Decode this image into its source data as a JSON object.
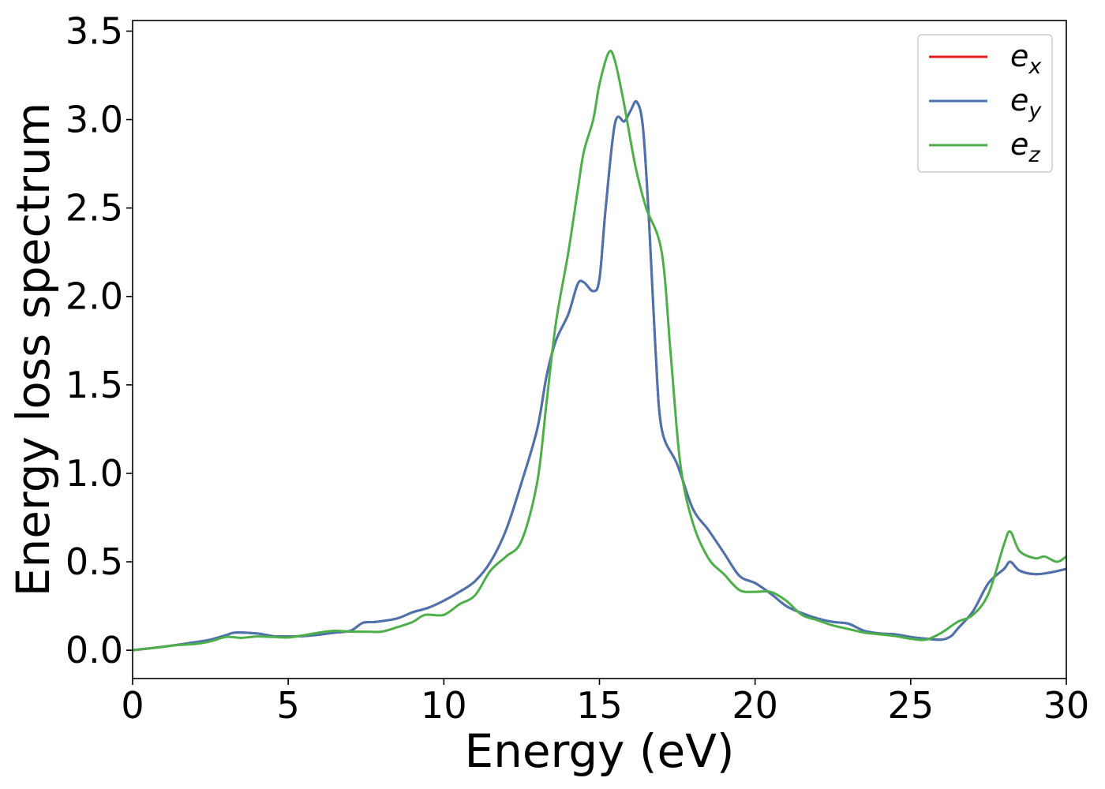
{
  "chart_data": {
    "type": "line",
    "title": "",
    "xlabel": "Energy (eV)",
    "ylabel": "Energy loss spectrum",
    "xlim": [
      0,
      30
    ],
    "ylim": [
      -0.16,
      3.56
    ],
    "x_ticks": [
      0,
      5,
      10,
      15,
      20,
      25,
      30
    ],
    "x_tick_labels": [
      "0",
      "5",
      "10",
      "15",
      "20",
      "25",
      "30"
    ],
    "y_ticks": [
      0.0,
      0.5,
      1.0,
      1.5,
      2.0,
      2.5,
      3.0,
      3.5
    ],
    "y_tick_labels": [
      "0.0",
      "0.5",
      "1.0",
      "1.5",
      "2.0",
      "2.5",
      "3.0",
      "3.5"
    ],
    "grid": false,
    "legend_position": "top-right",
    "series": [
      {
        "name": "e",
        "subscript": "x",
        "color": "#e41a1c",
        "points": [
          [
            0,
            0
          ],
          [
            1,
            0.02
          ],
          [
            2,
            0.045
          ],
          [
            2.5,
            0.06
          ],
          [
            3,
            0.085
          ],
          [
            3.3,
            0.1
          ],
          [
            4,
            0.095
          ],
          [
            4.5,
            0.08
          ],
          [
            5,
            0.078
          ],
          [
            5.5,
            0.08
          ],
          [
            6,
            0.088
          ],
          [
            6.5,
            0.1
          ],
          [
            7,
            0.11
          ],
          [
            7.4,
            0.155
          ],
          [
            7.8,
            0.16
          ],
          [
            8.5,
            0.18
          ],
          [
            9,
            0.215
          ],
          [
            9.5,
            0.24
          ],
          [
            10,
            0.28
          ],
          [
            10.5,
            0.33
          ],
          [
            11,
            0.39
          ],
          [
            11.5,
            0.5
          ],
          [
            12,
            0.68
          ],
          [
            12.5,
            0.95
          ],
          [
            13,
            1.25
          ],
          [
            13.3,
            1.55
          ],
          [
            13.6,
            1.75
          ],
          [
            14,
            1.9
          ],
          [
            14.3,
            2.07
          ],
          [
            14.5,
            2.08
          ],
          [
            14.8,
            2.03
          ],
          [
            15,
            2.1
          ],
          [
            15.2,
            2.5
          ],
          [
            15.5,
            2.98
          ],
          [
            15.8,
            2.99
          ],
          [
            16,
            3.05
          ],
          [
            16.2,
            3.1
          ],
          [
            16.4,
            2.95
          ],
          [
            16.6,
            2.4
          ],
          [
            16.8,
            1.7
          ],
          [
            17,
            1.25
          ],
          [
            17.5,
            1.05
          ],
          [
            18,
            0.8
          ],
          [
            18.5,
            0.68
          ],
          [
            19,
            0.55
          ],
          [
            19.5,
            0.42
          ],
          [
            20,
            0.38
          ],
          [
            20.5,
            0.32
          ],
          [
            21,
            0.25
          ],
          [
            21.5,
            0.21
          ],
          [
            22,
            0.18
          ],
          [
            22.5,
            0.16
          ],
          [
            23,
            0.15
          ],
          [
            23.5,
            0.11
          ],
          [
            24,
            0.095
          ],
          [
            24.5,
            0.09
          ],
          [
            25,
            0.075
          ],
          [
            25.5,
            0.065
          ],
          [
            26,
            0.06
          ],
          [
            26.3,
            0.08
          ],
          [
            26.5,
            0.12
          ],
          [
            27,
            0.22
          ],
          [
            27.5,
            0.38
          ],
          [
            28,
            0.46
          ],
          [
            28.2,
            0.5
          ],
          [
            28.5,
            0.45
          ],
          [
            29,
            0.43
          ],
          [
            29.5,
            0.44
          ],
          [
            30,
            0.46
          ]
        ]
      },
      {
        "name": "e",
        "subscript": "y",
        "color": "#4a74b0",
        "points": [
          [
            0,
            0
          ],
          [
            1,
            0.02
          ],
          [
            2,
            0.045
          ],
          [
            2.5,
            0.06
          ],
          [
            3,
            0.085
          ],
          [
            3.3,
            0.1
          ],
          [
            4,
            0.095
          ],
          [
            4.5,
            0.08
          ],
          [
            5,
            0.078
          ],
          [
            5.5,
            0.08
          ],
          [
            6,
            0.088
          ],
          [
            6.5,
            0.1
          ],
          [
            7,
            0.11
          ],
          [
            7.4,
            0.155
          ],
          [
            7.8,
            0.16
          ],
          [
            8.5,
            0.18
          ],
          [
            9,
            0.215
          ],
          [
            9.5,
            0.24
          ],
          [
            10,
            0.28
          ],
          [
            10.5,
            0.33
          ],
          [
            11,
            0.39
          ],
          [
            11.5,
            0.5
          ],
          [
            12,
            0.68
          ],
          [
            12.5,
            0.95
          ],
          [
            13,
            1.25
          ],
          [
            13.3,
            1.55
          ],
          [
            13.6,
            1.75
          ],
          [
            14,
            1.9
          ],
          [
            14.3,
            2.07
          ],
          [
            14.5,
            2.08
          ],
          [
            14.8,
            2.03
          ],
          [
            15,
            2.1
          ],
          [
            15.2,
            2.5
          ],
          [
            15.5,
            2.98
          ],
          [
            15.8,
            2.99
          ],
          [
            16,
            3.05
          ],
          [
            16.2,
            3.1
          ],
          [
            16.4,
            2.95
          ],
          [
            16.6,
            2.4
          ],
          [
            16.8,
            1.7
          ],
          [
            17,
            1.25
          ],
          [
            17.5,
            1.05
          ],
          [
            18,
            0.8
          ],
          [
            18.5,
            0.68
          ],
          [
            19,
            0.55
          ],
          [
            19.5,
            0.42
          ],
          [
            20,
            0.38
          ],
          [
            20.5,
            0.32
          ],
          [
            21,
            0.25
          ],
          [
            21.5,
            0.21
          ],
          [
            22,
            0.18
          ],
          [
            22.5,
            0.16
          ],
          [
            23,
            0.15
          ],
          [
            23.5,
            0.11
          ],
          [
            24,
            0.095
          ],
          [
            24.5,
            0.09
          ],
          [
            25,
            0.075
          ],
          [
            25.5,
            0.065
          ],
          [
            26,
            0.06
          ],
          [
            26.3,
            0.08
          ],
          [
            26.5,
            0.12
          ],
          [
            27,
            0.22
          ],
          [
            27.5,
            0.38
          ],
          [
            28,
            0.46
          ],
          [
            28.2,
            0.5
          ],
          [
            28.5,
            0.45
          ],
          [
            29,
            0.43
          ],
          [
            29.5,
            0.44
          ],
          [
            30,
            0.46
          ]
        ]
      },
      {
        "name": "e",
        "subscript": "z",
        "color": "#4daf4a",
        "points": [
          [
            0,
            0
          ],
          [
            1,
            0.02
          ],
          [
            1.5,
            0.03
          ],
          [
            2,
            0.035
          ],
          [
            2.5,
            0.05
          ],
          [
            3,
            0.075
          ],
          [
            3.5,
            0.07
          ],
          [
            4,
            0.078
          ],
          [
            4.5,
            0.075
          ],
          [
            5,
            0.072
          ],
          [
            5.5,
            0.085
          ],
          [
            6,
            0.1
          ],
          [
            6.5,
            0.11
          ],
          [
            7,
            0.105
          ],
          [
            7.5,
            0.105
          ],
          [
            8,
            0.105
          ],
          [
            8.5,
            0.13
          ],
          [
            9,
            0.16
          ],
          [
            9.4,
            0.2
          ],
          [
            10,
            0.2
          ],
          [
            10.5,
            0.26
          ],
          [
            11,
            0.31
          ],
          [
            11.5,
            0.45
          ],
          [
            12,
            0.53
          ],
          [
            12.5,
            0.62
          ],
          [
            13,
            0.95
          ],
          [
            13.3,
            1.4
          ],
          [
            13.6,
            1.85
          ],
          [
            14,
            2.25
          ],
          [
            14.3,
            2.6
          ],
          [
            14.5,
            2.82
          ],
          [
            14.8,
            3.0
          ],
          [
            15,
            3.2
          ],
          [
            15.3,
            3.38
          ],
          [
            15.5,
            3.33
          ],
          [
            15.8,
            3.08
          ],
          [
            16,
            2.88
          ],
          [
            16.2,
            2.7
          ],
          [
            16.5,
            2.5
          ],
          [
            17,
            2.25
          ],
          [
            17.3,
            1.65
          ],
          [
            17.6,
            1.05
          ],
          [
            18,
            0.72
          ],
          [
            18.5,
            0.52
          ],
          [
            19,
            0.43
          ],
          [
            19.5,
            0.34
          ],
          [
            20,
            0.33
          ],
          [
            20.5,
            0.33
          ],
          [
            21,
            0.28
          ],
          [
            21.5,
            0.2
          ],
          [
            22,
            0.17
          ],
          [
            22.5,
            0.14
          ],
          [
            23,
            0.12
          ],
          [
            23.5,
            0.1
          ],
          [
            24,
            0.09
          ],
          [
            24.5,
            0.08
          ],
          [
            25,
            0.065
          ],
          [
            25.5,
            0.06
          ],
          [
            26,
            0.1
          ],
          [
            26.5,
            0.16
          ],
          [
            27,
            0.2
          ],
          [
            27.5,
            0.32
          ],
          [
            28,
            0.6
          ],
          [
            28.2,
            0.67
          ],
          [
            28.5,
            0.56
          ],
          [
            29,
            0.52
          ],
          [
            29.3,
            0.53
          ],
          [
            29.7,
            0.5
          ],
          [
            30,
            0.53
          ]
        ]
      }
    ]
  }
}
